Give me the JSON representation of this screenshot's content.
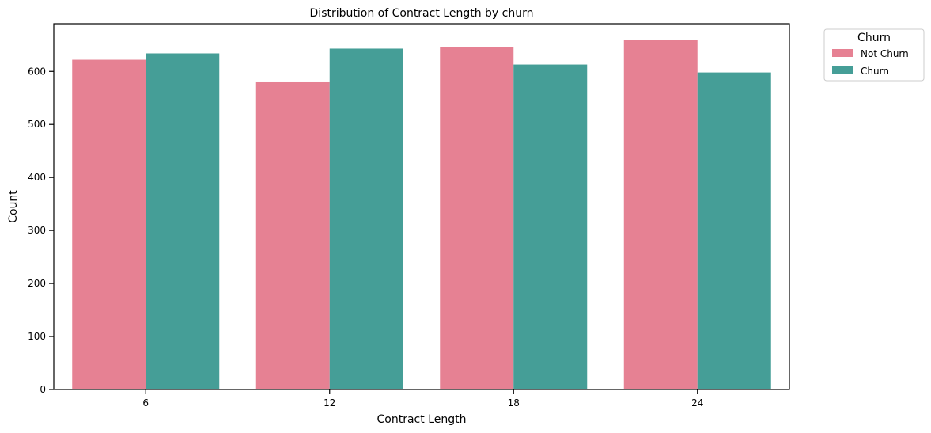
{
  "chart_data": {
    "type": "bar",
    "title": "Distribution of Contract Length by churn",
    "xlabel": "Contract Length",
    "ylabel": "Count",
    "categories": [
      "6",
      "12",
      "18",
      "24"
    ],
    "series": [
      {
        "name": "Not Churn",
        "color": "#e68193",
        "values": [
          622,
          581,
          646,
          660
        ]
      },
      {
        "name": "Churn",
        "color": "#459e97",
        "values": [
          634,
          643,
          613,
          598
        ]
      }
    ],
    "ylim": [
      0,
      690
    ],
    "yticks": [
      0,
      100,
      200,
      300,
      400,
      500,
      600
    ],
    "grid": false,
    "legend": {
      "title": "Churn",
      "position": "outside-top-right"
    }
  }
}
